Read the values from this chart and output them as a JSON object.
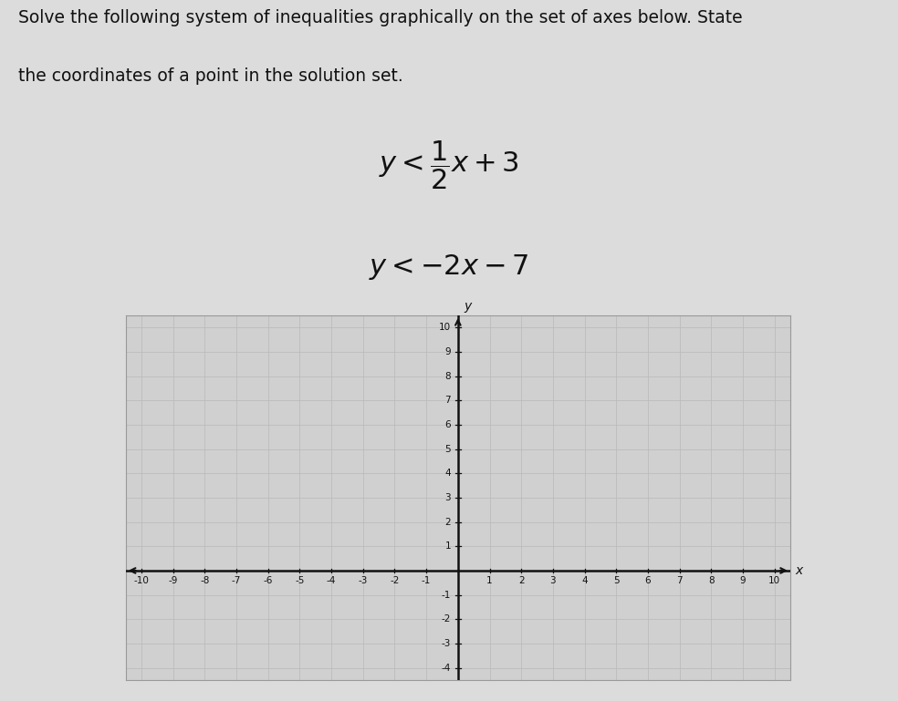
{
  "title_line1": "Solve the following system of inequalities graphically on the set of axes below. State",
  "title_line2": "the coordinates of a point in the solution set.",
  "xlabel": "x",
  "ylabel": "y",
  "xlim": [
    -10.5,
    10.5
  ],
  "ylim": [
    -4.5,
    10.5
  ],
  "xticks": [
    -10,
    -9,
    -8,
    -7,
    -6,
    -5,
    -4,
    -3,
    -2,
    -1,
    1,
    2,
    3,
    4,
    5,
    6,
    7,
    8,
    9,
    10
  ],
  "yticks": [
    -4,
    -3,
    -2,
    -1,
    1,
    2,
    3,
    4,
    5,
    6,
    7,
    8,
    9,
    10
  ],
  "fig_bg": "#dcdcdc",
  "graph_bg": "#d0d0d0",
  "grid_color": "#b8b8b8",
  "axis_color": "#111111",
  "text_color": "#111111"
}
